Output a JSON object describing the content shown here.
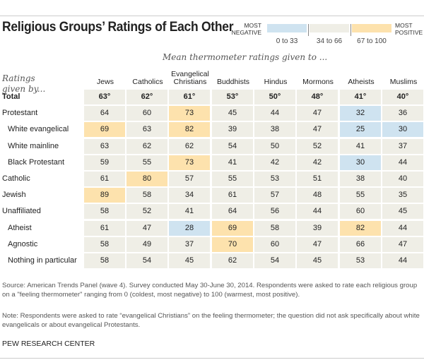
{
  "title": "Religious Groups’ Ratings of Each Other",
  "legend": {
    "most_negative": [
      "MOST",
      "NEGATIVE"
    ],
    "most_positive": [
      "MOST",
      "POSITIVE"
    ],
    "bins": [
      {
        "label": "0 to 33",
        "color": "#cfe3f0",
        "min": 0,
        "max": 33
      },
      {
        "label": "34 to 66",
        "color": "#efeee6",
        "min": 34,
        "max": 66
      },
      {
        "label": "67 to 100",
        "color": "#fde2ad",
        "min": 67,
        "max": 100
      }
    ]
  },
  "chart_data": {
    "type": "table",
    "title": "Religious Groups’ Ratings of Each Other",
    "subtitle": "Mean thermometer ratings given to ...",
    "row_header": [
      "Ratings",
      "given by..."
    ],
    "columns": [
      "Jews",
      "Catholics",
      [
        "Evangelical",
        "Christians"
      ],
      "Buddhists",
      "Hindus",
      "Mormons",
      "Atheists",
      "Muslims"
    ],
    "rows": [
      {
        "label": "Total",
        "indent": false,
        "bold": true,
        "values": [
          63,
          62,
          61,
          53,
          50,
          48,
          41,
          40
        ],
        "unit": "°"
      },
      {
        "label": "Protestant",
        "indent": false,
        "values": [
          64,
          60,
          73,
          45,
          44,
          47,
          32,
          36
        ]
      },
      {
        "label": "White evangelical",
        "indent": true,
        "values": [
          69,
          63,
          82,
          39,
          38,
          47,
          25,
          30
        ]
      },
      {
        "label": "White mainline",
        "indent": true,
        "values": [
          63,
          62,
          62,
          54,
          50,
          52,
          41,
          37
        ]
      },
      {
        "label": "Black Protestant",
        "indent": true,
        "values": [
          59,
          55,
          73,
          41,
          42,
          42,
          30,
          44
        ]
      },
      {
        "label": "Catholic",
        "indent": false,
        "values": [
          61,
          80,
          57,
          55,
          53,
          51,
          38,
          40
        ]
      },
      {
        "label": "Jewish",
        "indent": false,
        "values": [
          89,
          58,
          34,
          61,
          57,
          48,
          55,
          35
        ]
      },
      {
        "label": "Unaffiliated",
        "indent": false,
        "values": [
          58,
          52,
          41,
          64,
          56,
          44,
          60,
          45
        ]
      },
      {
        "label": "Atheist",
        "indent": true,
        "values": [
          61,
          47,
          28,
          69,
          58,
          39,
          82,
          44
        ]
      },
      {
        "label": "Agnostic",
        "indent": true,
        "values": [
          58,
          49,
          37,
          70,
          60,
          47,
          66,
          47
        ]
      },
      {
        "label": "Nothing in particular",
        "indent": true,
        "values": [
          58,
          54,
          45,
          62,
          54,
          45,
          53,
          44
        ]
      }
    ]
  },
  "source": "Source: American Trends Panel (wave 4). Survey conducted May 30-June 30, 2014. Respondents were asked to rate each religious group on a \"feeling thermometer\" ranging from 0 (coldest, most negative) to 100 (warmest, most positive).",
  "note": "Note: Respondents were asked to rate “evangelical Christians” on the feeling thermometer; the question did not ask specifically about white evangelicals or about evangelical Protestants.",
  "org": "PEW RESEARCH CENTER"
}
